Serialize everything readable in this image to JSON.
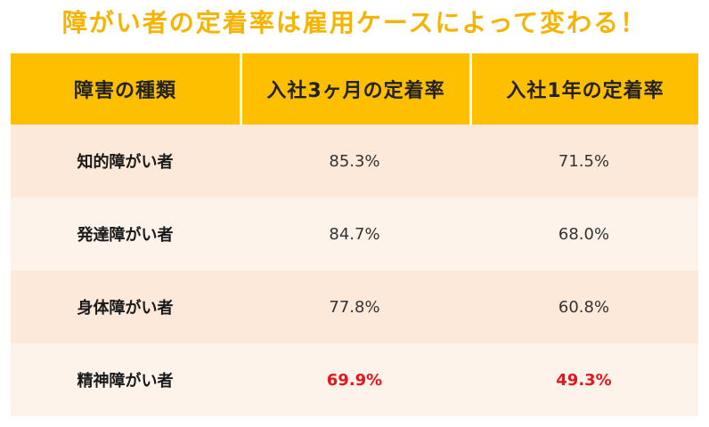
{
  "title": "障がい者の定着率は雇用ケースによって変わる！",
  "accent_color": "#fdbf00",
  "highlight_color": "#e8141c",
  "table": {
    "headers": [
      "障害の種類",
      "入社3ヶ月の定着率",
      "入社1年の定着率"
    ],
    "rows": [
      {
        "type": "知的障がい者",
        "three_months": "85.3%",
        "one_year": "71.5%"
      },
      {
        "type": "発達障がい者",
        "three_months": "84.7%",
        "one_year": "68.0%"
      },
      {
        "type": "身体障がい者",
        "three_months": "77.8%",
        "one_year": "60.8%"
      },
      {
        "type": "精神障がい者",
        "three_months": "69.9%",
        "one_year": "49.3%"
      }
    ]
  }
}
